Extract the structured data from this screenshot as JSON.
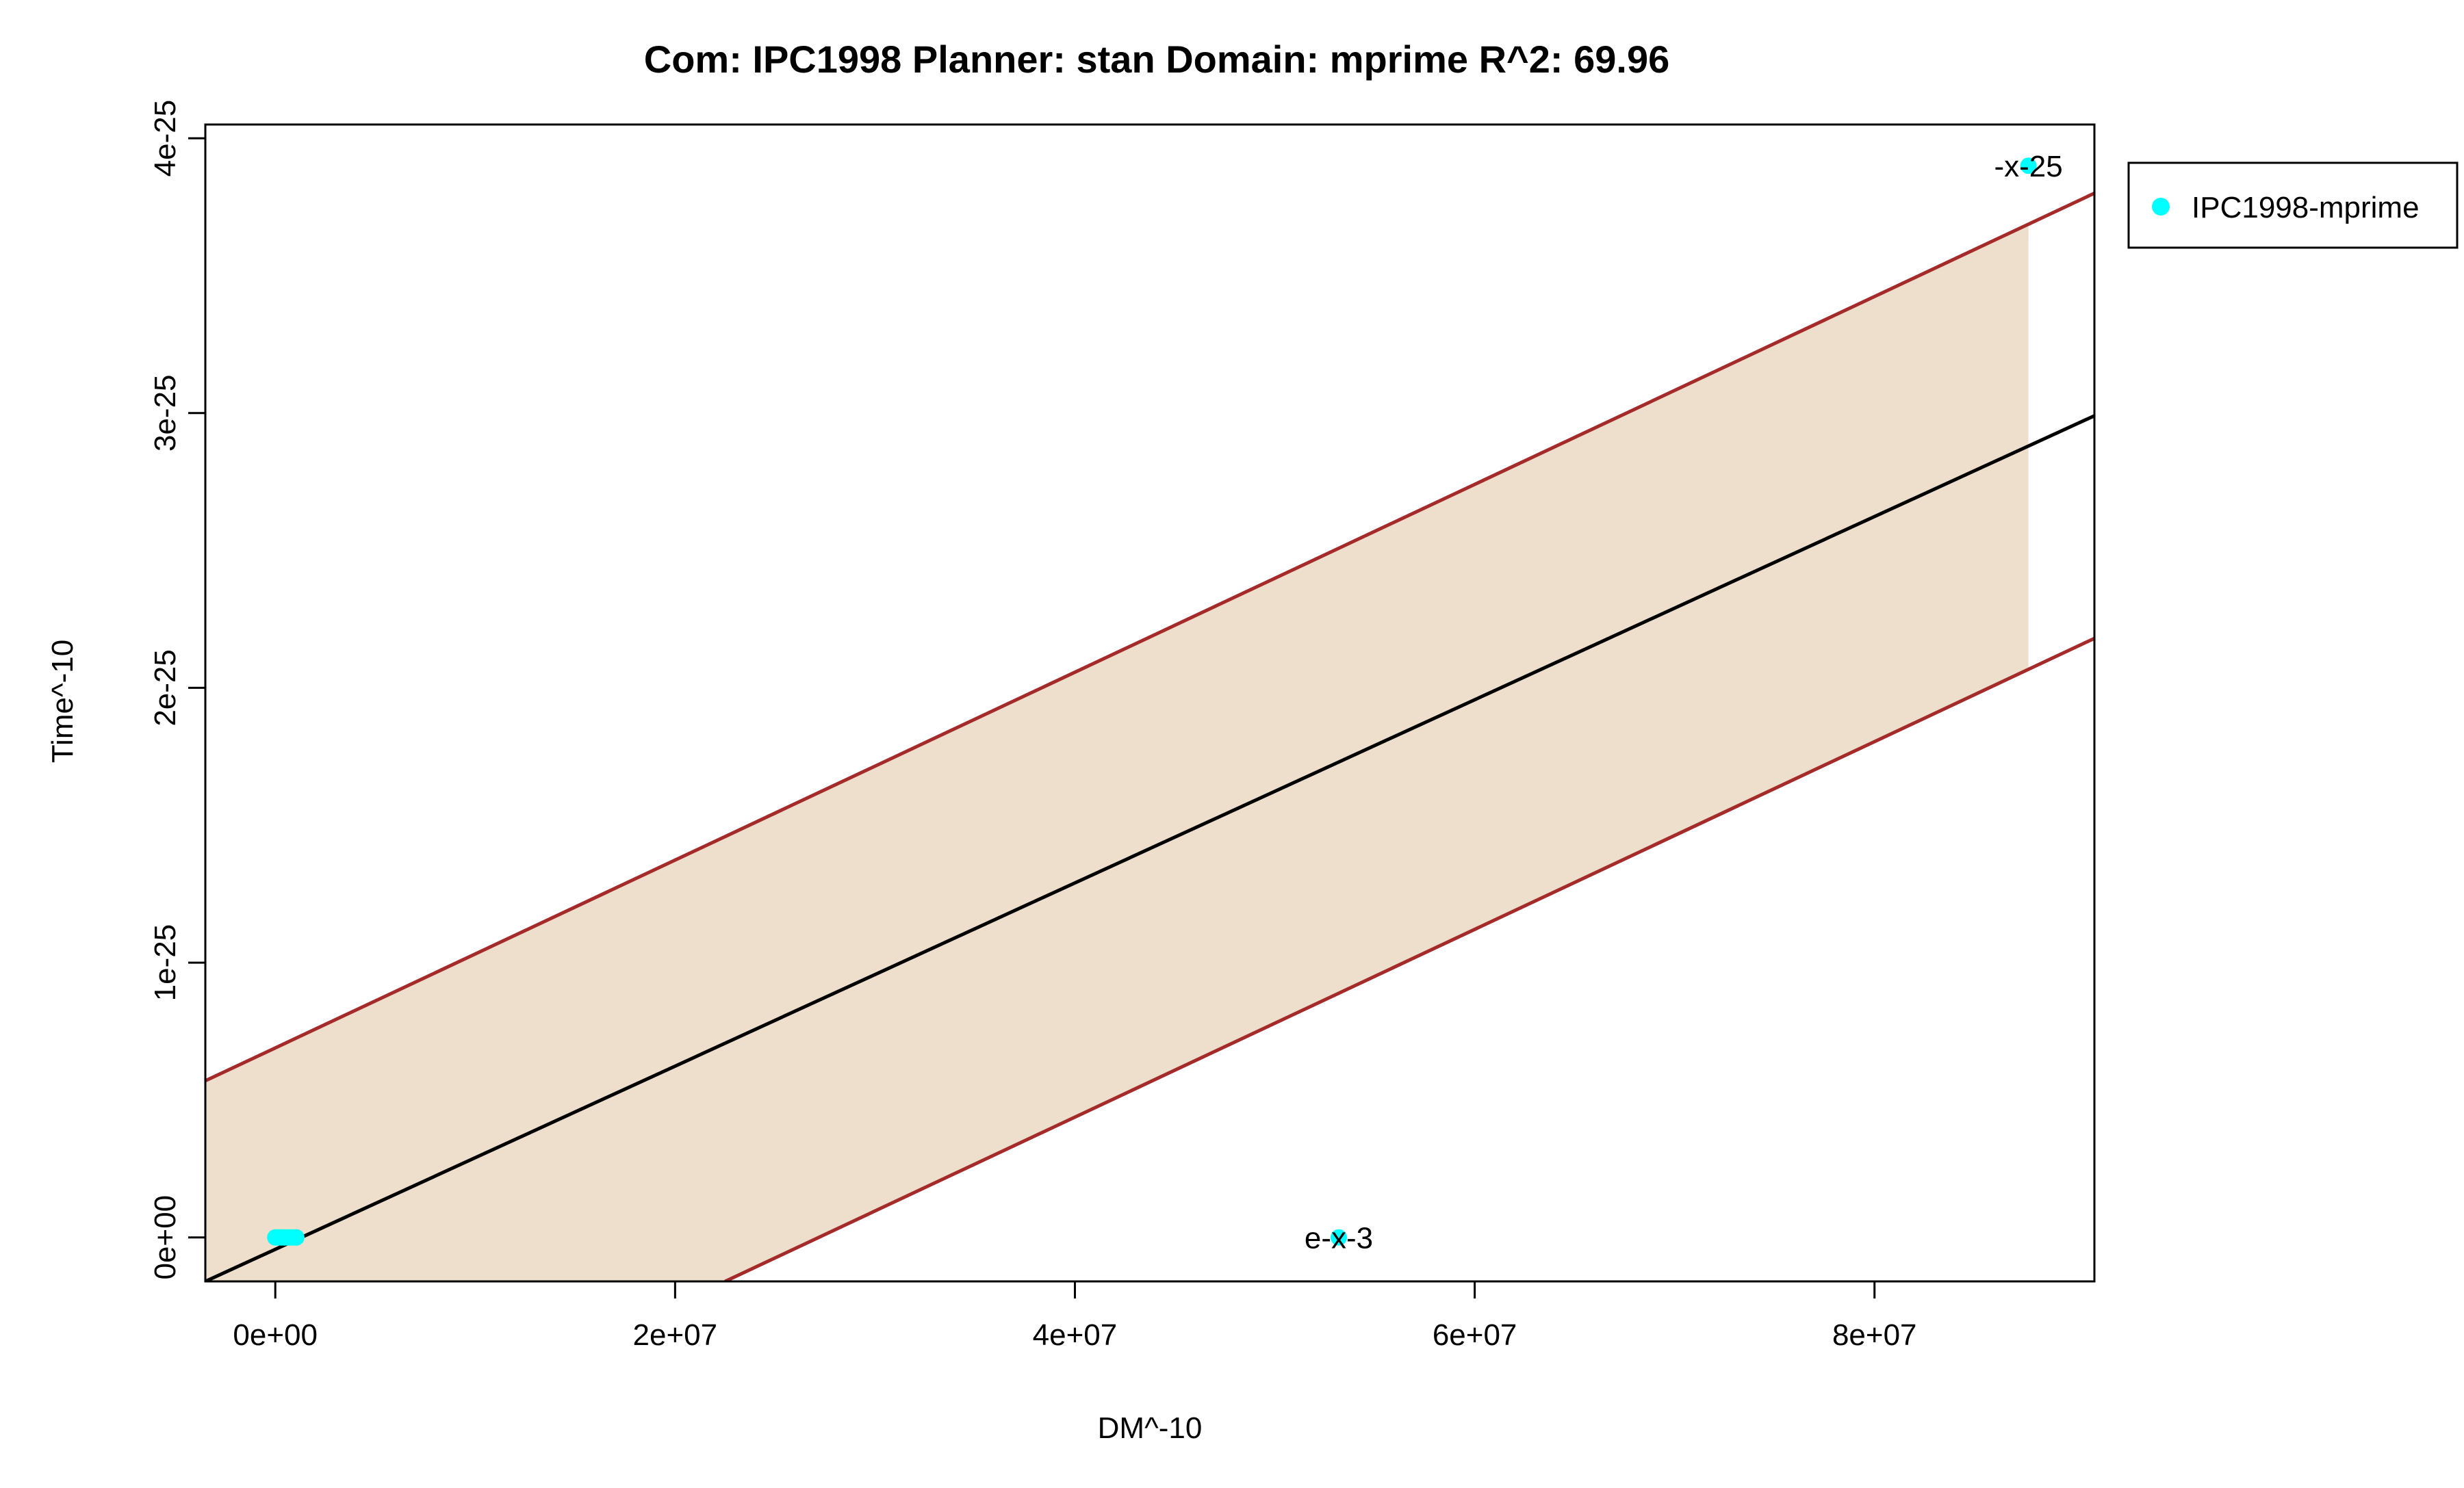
{
  "chart_data": {
    "type": "scatter",
    "title": "Com: IPC1998 Planner: stan Domain: mprime R^2: 69.96",
    "xlabel": "DM^-10",
    "ylabel": "Time^-10",
    "xlim": [
      -3500000.0,
      91000000.0
    ],
    "ylim": [
      -1.6e-26,
      4.05e-25
    ],
    "x_ticks": [
      0,
      20000000.0,
      40000000.0,
      60000000.0,
      80000000.0
    ],
    "x_tick_labels": [
      "0e+00",
      "2e+07",
      "4e+07",
      "6e+07",
      "8e+07"
    ],
    "y_ticks": [
      0,
      1e-25,
      2e-25,
      3e-25,
      4e-25
    ],
    "y_tick_labels": [
      "0e+00",
      "1e-25",
      "2e-25",
      "3e-25",
      "4e-25"
    ],
    "grid": false,
    "legend": {
      "position": "top-right-outside",
      "entries": [
        {
          "label": "IPC1998-mprime",
          "color": "#00ffff",
          "marker": "circle"
        }
      ]
    },
    "series": [
      {
        "name": "IPC1998-mprime",
        "color": "#00ffff",
        "points": [
          {
            "x": 0,
            "y": 0
          },
          {
            "x": 150000,
            "y": 0
          },
          {
            "x": 300000,
            "y": 0
          },
          {
            "x": 450000,
            "y": 0
          },
          {
            "x": 600000,
            "y": 0
          },
          {
            "x": 750000,
            "y": 0
          },
          {
            "x": 900000,
            "y": 0
          },
          {
            "x": 1050000,
            "y": 0
          },
          {
            "x": 53200000,
            "y": 0,
            "label": "e-x-3"
          },
          {
            "x": 87700000,
            "y": 3.9e-25,
            "label": "-x-25"
          }
        ]
      }
    ],
    "regression_line": {
      "color": "#000000",
      "points": [
        [
          -3500000.0,
          -1.6e-26
        ],
        [
          91000000.0,
          2.99e-25
        ]
      ]
    },
    "prediction_band": {
      "fill_color": "#eedfcc",
      "x_range": [
        -3500000.0,
        87700000.0
      ],
      "upper": [
        [
          -3500000.0,
          5.7e-26
        ],
        [
          87700000.0,
          3.69e-25
        ]
      ],
      "lower": [
        [
          -3500000.0,
          -1.6e-26
        ],
        [
          22500000.0,
          -1.6e-26
        ],
        [
          87700000.0,
          2.07e-25
        ]
      ]
    },
    "band_lines": {
      "color": "#a52a2a",
      "upper": [
        [
          -3500000.0,
          5.7e-26
        ],
        [
          91000000.0,
          3.8e-25
        ]
      ],
      "lower": [
        [
          22500000.0,
          -1.6e-26
        ],
        [
          91000000.0,
          2.18e-25
        ]
      ]
    }
  }
}
